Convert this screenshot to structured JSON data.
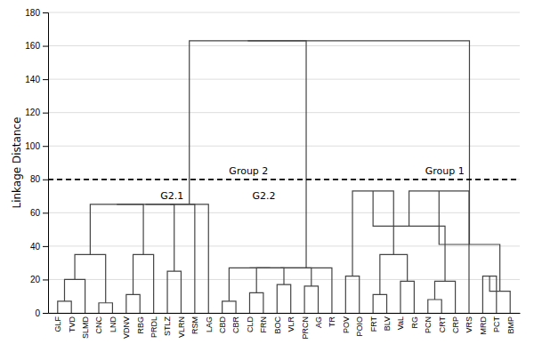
{
  "chart_data": {
    "type": "dendrogram",
    "categories": [
      "GLF",
      "TVD",
      "SLMD",
      "CNC",
      "LND",
      "VDNV",
      "RBG",
      "PRDL",
      "STLZ",
      "VLRN",
      "RSM",
      "LAG",
      "CBD",
      "CBR",
      "CLD",
      "FRN",
      "BOC",
      "VLR",
      "PRCN",
      "AG",
      "TR",
      "POV",
      "POIO",
      "FRT",
      "BLV",
      "VaL",
      "RG",
      "PCN",
      "CRT",
      "CRP",
      "VRS",
      "MRD",
      "PCT",
      "BMP"
    ],
    "ylabel": "Linkage Distance",
    "ylim": [
      0,
      180
    ],
    "yticks": [
      0,
      20,
      40,
      60,
      80,
      100,
      120,
      140,
      160,
      180
    ],
    "grid": true,
    "color": "#444444",
    "threshold": {
      "value": 80,
      "color": "#000000",
      "line_style": "dashed"
    },
    "merges": [
      {
        "left": 0,
        "right": 1,
        "height": 7,
        "new_id": 34
      },
      {
        "left": 34,
        "right": 2,
        "height": 20,
        "new_id": 35
      },
      {
        "left": 3,
        "right": 4,
        "height": 6,
        "new_id": 36
      },
      {
        "left": 35,
        "right": 36,
        "height": 35,
        "new_id": 37
      },
      {
        "left": 5,
        "right": 6,
        "height": 11,
        "new_id": 38
      },
      {
        "left": 38,
        "right": 7,
        "height": 35,
        "new_id": 39
      },
      {
        "left": 37,
        "right": 39,
        "height": 65,
        "new_id": 40
      },
      {
        "left": 8,
        "right": 9,
        "height": 25,
        "new_id": 41
      },
      {
        "left": 40,
        "right": 41,
        "height": 65,
        "new_id": 42
      },
      {
        "left": 10,
        "right": 42,
        "height": 65,
        "new_id": 43
      },
      {
        "left": 11,
        "right": 43,
        "height": 65,
        "new_id": 44
      },
      {
        "left": 12,
        "right": 13,
        "height": 7,
        "new_id": 45
      },
      {
        "left": 14,
        "right": 15,
        "height": 12,
        "new_id": 46
      },
      {
        "left": 16,
        "right": 17,
        "height": 17,
        "new_id": 47
      },
      {
        "left": 46,
        "right": 47,
        "height": 27,
        "new_id": 48
      },
      {
        "left": 45,
        "right": 48,
        "height": 27,
        "new_id": 49
      },
      {
        "left": 18,
        "right": 19,
        "height": 16,
        "new_id": 50
      },
      {
        "left": 49,
        "right": 50,
        "height": 27,
        "new_id": 51
      },
      {
        "left": 20,
        "right": 51,
        "height": 27,
        "new_id": 52
      },
      {
        "left": 44,
        "right": 52,
        "height": 163,
        "new_id": 53
      },
      {
        "left": 21,
        "right": 22,
        "height": 22,
        "new_id": 54
      },
      {
        "left": 23,
        "right": 24,
        "height": 11,
        "new_id": 55
      },
      {
        "left": 25,
        "right": 26,
        "height": 19,
        "new_id": 56
      },
      {
        "left": 55,
        "right": 56,
        "height": 35,
        "new_id": 57
      },
      {
        "left": 54,
        "right": 57,
        "height": 73,
        "new_id": 58
      },
      {
        "left": 27,
        "right": 28,
        "height": 8,
        "new_id": 59
      },
      {
        "left": 29,
        "right": 59,
        "height": 19,
        "new_id": 60
      },
      {
        "left": 60,
        "right": 58,
        "height": 52,
        "new_id": 61
      },
      {
        "left": 61,
        "right": 30,
        "height": 73,
        "new_id": 62
      },
      {
        "left": 31,
        "right": 32,
        "height": 22,
        "new_id": 63
      },
      {
        "left": 33,
        "right": 63,
        "height": 13,
        "new_id": 64
      },
      {
        "left": 64,
        "right": 62,
        "height": 41,
        "new_id": 65
      },
      {
        "left": 53,
        "right": 65,
        "height": 163,
        "new_id": 66
      }
    ],
    "annotations": [
      {
        "text": "Group 2",
        "x": 13.5,
        "y": 82
      },
      {
        "text": "Group 1",
        "x": 27.8,
        "y": 82
      },
      {
        "text": "G2.1",
        "x": 8.5,
        "y": 67
      },
      {
        "text": "G2.2",
        "x": 15.2,
        "y": 67
      }
    ]
  }
}
